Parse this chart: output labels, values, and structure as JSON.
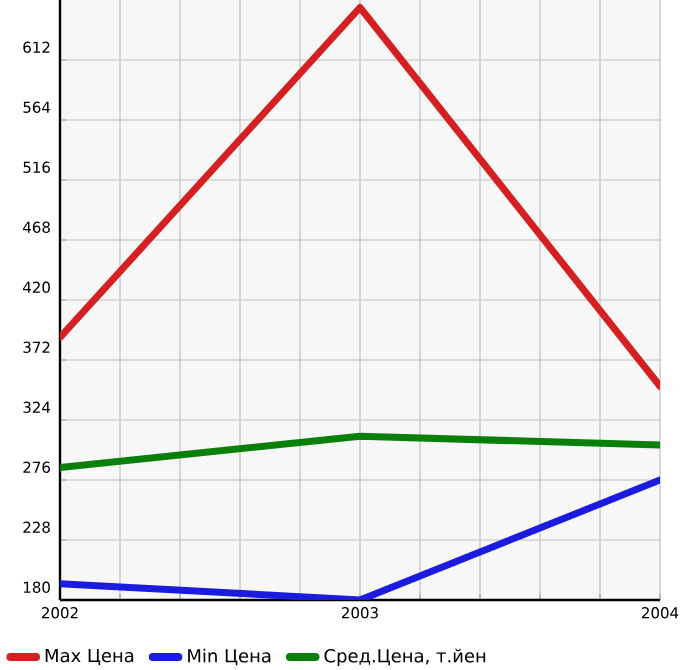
{
  "chart_data": {
    "type": "line",
    "x": [
      2002,
      2003,
      2004
    ],
    "xlim": [
      2002,
      2004
    ],
    "xticks": [
      2002,
      2003,
      2004
    ],
    "ylim": [
      180,
      660
    ],
    "yticks": [
      180,
      228,
      276,
      324,
      372,
      420,
      468,
      516,
      564,
      612
    ],
    "grid": true,
    "legend": "bottom",
    "marker": "none",
    "line_style": "solid",
    "series": [
      {
        "name": "Max Цена",
        "color": "#d42020",
        "values": [
          390,
          654,
          351
        ]
      },
      {
        "name": "Min Цена",
        "color": "#1c1ce0",
        "values": [
          193,
          180,
          276
        ]
      },
      {
        "name": "Сред.Цена, т.йен",
        "color": "#0a800a",
        "values": [
          286,
          311,
          304
        ]
      }
    ]
  }
}
